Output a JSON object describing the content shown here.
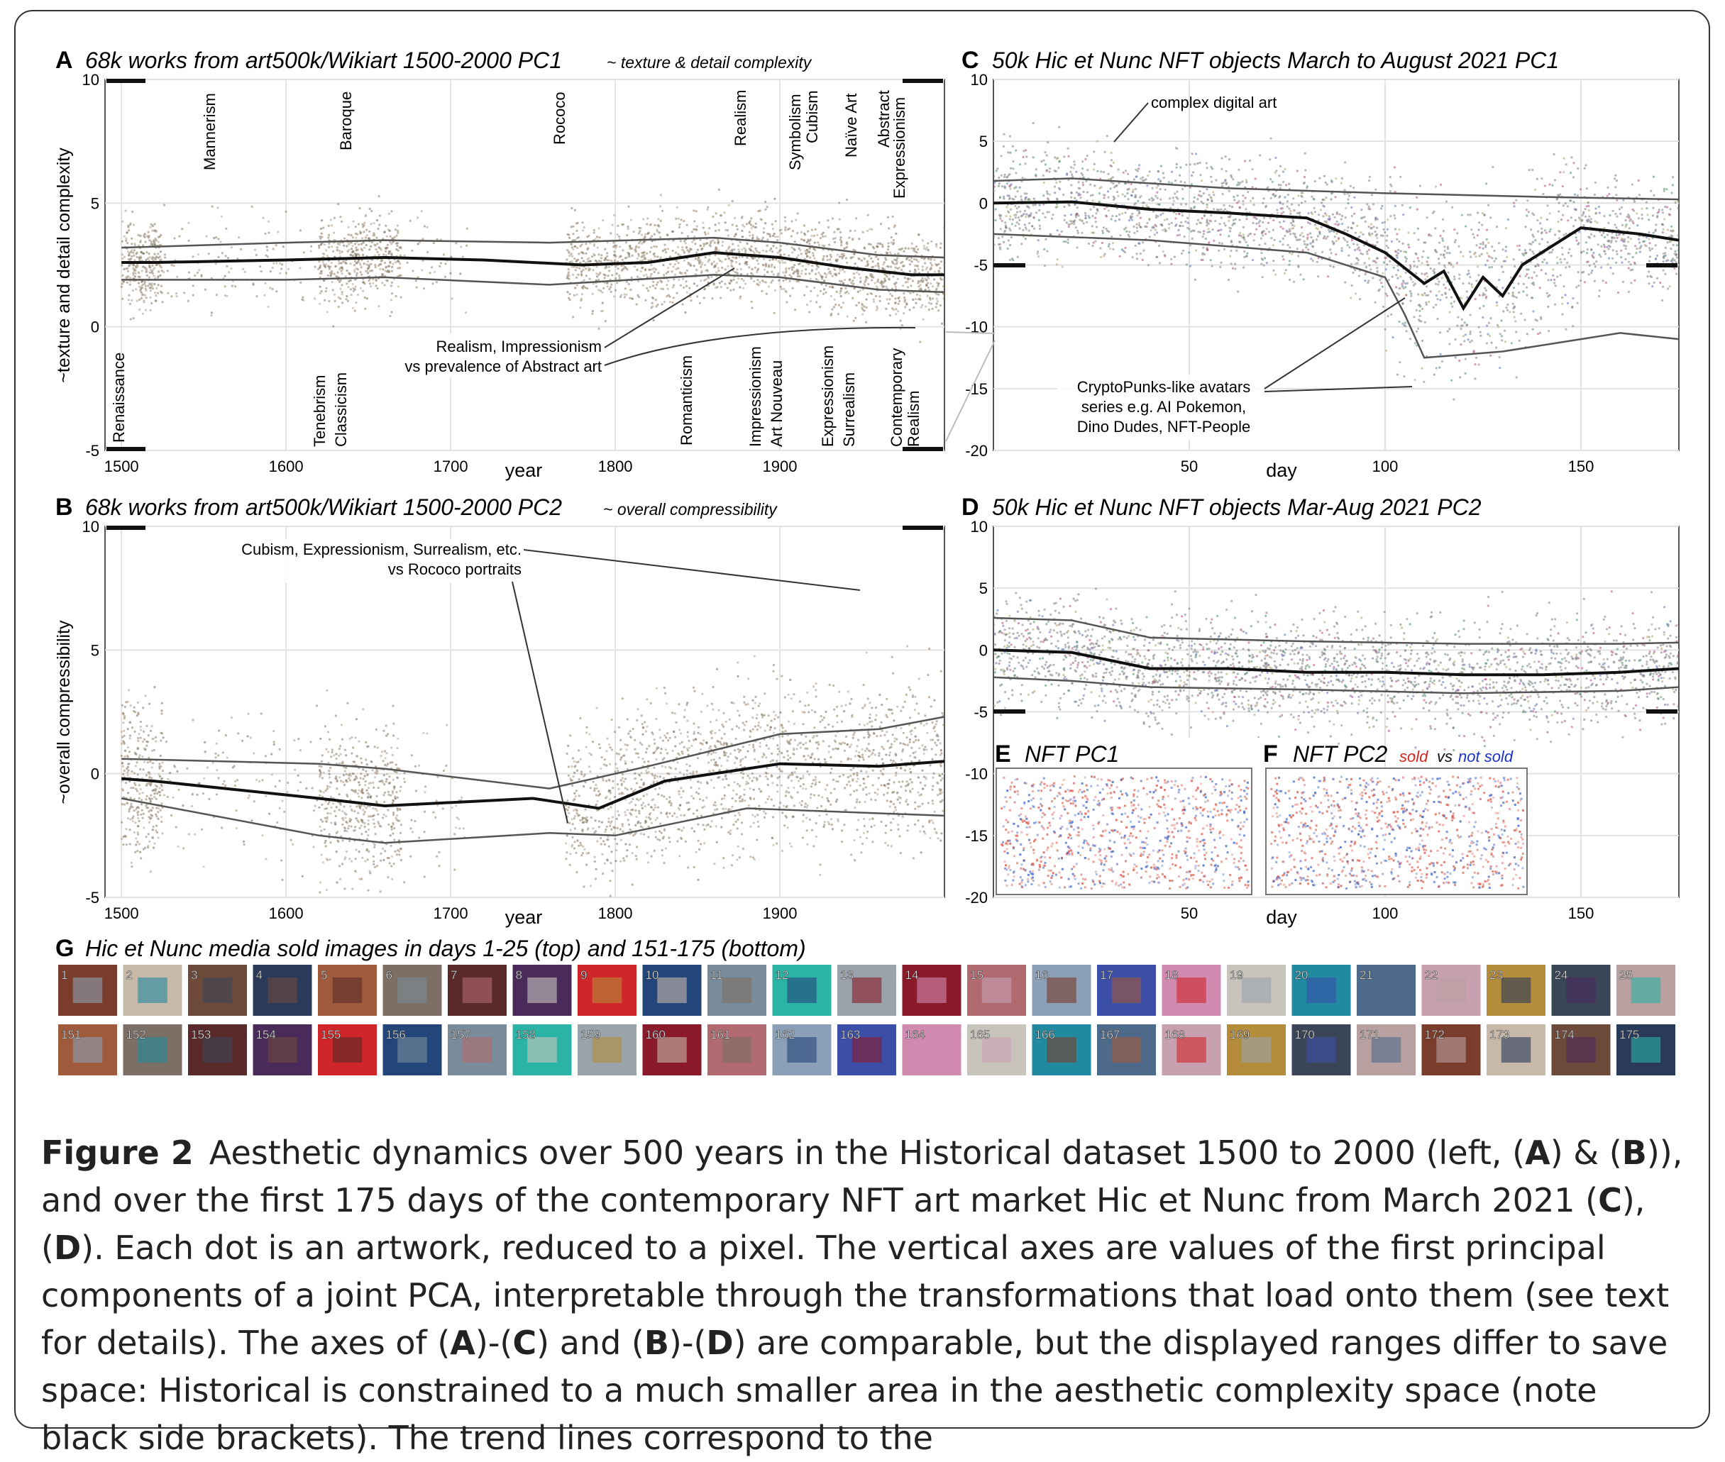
{
  "figure": {
    "panels": {
      "A": {
        "letter": "A",
        "title": "68k works from art500k/Wikiart 1500-2000 PC1",
        "subtitle": "~ texture & detail complexity",
        "ylabel": "~texture and detail complexity",
        "xlabel": "year"
      },
      "B": {
        "letter": "B",
        "title": "68k works from art500k/Wikiart 1500-2000 PC2",
        "subtitle": "~ overall compressibility",
        "ylabel": "~overall compressibility",
        "xlabel": "year"
      },
      "C": {
        "letter": "C",
        "title": "50k Hic et Nunc NFT objects March to August 2021 PC1",
        "xlabel": "day"
      },
      "D": {
        "letter": "D",
        "title": "50k Hic et Nunc NFT objects Mar-Aug 2021 PC2",
        "xlabel": "day"
      },
      "E": {
        "letter": "E",
        "title": "NFT PC1"
      },
      "F": {
        "letter": "F",
        "title": "NFT PC2",
        "sold": "sold",
        "vs": "vs",
        "not_sold": "not sold"
      },
      "G": {
        "letter": "G",
        "title": "Hic et Nunc media sold images in days 1-25 (top) and 151-175 (bottom)",
        "top_labels": [
          "1",
          "2",
          "3",
          "4",
          "5",
          "6",
          "7",
          "8",
          "9",
          "10",
          "11",
          "12",
          "13",
          "14",
          "15",
          "16",
          "17",
          "18",
          "19",
          "20",
          "21",
          "22",
          "23",
          "24",
          "25"
        ],
        "bottom_labels": [
          "151",
          "152",
          "153",
          "154",
          "155",
          "156",
          "157",
          "158",
          "159",
          "160",
          "161",
          "162",
          "163",
          "164",
          "165",
          "166",
          "167",
          "168",
          "169",
          "170",
          "171",
          "172",
          "173",
          "174",
          "175"
        ]
      }
    },
    "annotations": {
      "A_styles_top": [
        "Mannerism",
        "Baroque",
        "Rococo",
        "Realism",
        "Symbolism",
        "Cubism",
        "Naïve Art",
        "Abstract",
        "Expressionism"
      ],
      "A_styles_bottom": [
        "Renaissance",
        "Tenebrism",
        "Classicism",
        "Romanticism",
        "Impressionism",
        "Art Nouveau",
        "Expressionism",
        "Surrealism",
        "Contemporary",
        "Realism"
      ],
      "A_note_1": "Realism, Impressionism",
      "A_note_2": "vs prevalence of Abstract art",
      "B_note_1": "Cubism, Expressionism, Surrealism, etc.",
      "B_note_2": "vs Rococo portraits",
      "C_note_top": "complex digital art",
      "C_note_1": "CryptoPunks-like avatars",
      "C_note_2": "series e.g. AI Pokemon,",
      "C_note_3": "Dino Dudes, NFT-People"
    },
    "caption": {
      "label": "Figure 2",
      "p1": "Aesthetic dynamics over 500 years in the Historical dataset 1500 to 2000 (left, (",
      "A": "A",
      "amp": ") & (",
      "B": "B",
      "p2": ")), and over the first 175 days of the contemporary NFT art market Hic et Nunc from March 2021 (",
      "C": "C",
      "sep": "), (",
      "D": "D",
      "p3": "). Each dot is an artwork, reduced to a pixel. The vertical axes are values of the first principal components of a joint PCA, interpretable through the transformations that load onto them (see text for details). The axes of (",
      "A2": "A",
      "dash": ")-(",
      "C2": "C",
      "and": ") and (",
      "B2": "B",
      "dash2": ")-(",
      "D2": "D",
      "p4": ") are comparable, but the displayed ranges differ to save space: Historical is constrained to a much smaller area in the aesthetic complexity space (note black side brackets). The trend lines correspond to the"
    }
  },
  "chart_data": [
    {
      "type": "scatter",
      "panel": "A",
      "x_ticks": [
        1500,
        1600,
        1700,
        1800,
        1900
      ],
      "y_ticks": [
        -5,
        0,
        5,
        10
      ],
      "xlim": [
        1490,
        2000
      ],
      "ylim": [
        -5,
        10
      ],
      "trend_median": [
        [
          1500,
          2.6
        ],
        [
          1520,
          2.6
        ],
        [
          1600,
          2.7
        ],
        [
          1660,
          2.8
        ],
        [
          1720,
          2.7
        ],
        [
          1780,
          2.5
        ],
        [
          1820,
          2.6
        ],
        [
          1860,
          3.0
        ],
        [
          1900,
          2.8
        ],
        [
          1940,
          2.4
        ],
        [
          1980,
          2.1
        ],
        [
          2000,
          2.1
        ]
      ],
      "trend_upper": [
        [
          1500,
          3.2
        ],
        [
          1600,
          3.4
        ],
        [
          1660,
          3.5
        ],
        [
          1760,
          3.4
        ],
        [
          1860,
          3.6
        ],
        [
          1900,
          3.4
        ],
        [
          1960,
          2.9
        ],
        [
          2000,
          2.8
        ]
      ],
      "trend_lower": [
        [
          1500,
          1.9
        ],
        [
          1600,
          1.9
        ],
        [
          1660,
          2.0
        ],
        [
          1760,
          1.7
        ],
        [
          1860,
          2.1
        ],
        [
          1900,
          2.0
        ],
        [
          1960,
          1.5
        ],
        [
          2000,
          1.4
        ]
      ]
    },
    {
      "type": "scatter",
      "panel": "B",
      "x_ticks": [
        1500,
        1600,
        1700,
        1800,
        1900
      ],
      "y_ticks": [
        -5,
        0,
        5,
        10
      ],
      "xlim": [
        1490,
        2000
      ],
      "ylim": [
        -5,
        10
      ],
      "trend_median": [
        [
          1500,
          -0.2
        ],
        [
          1520,
          -0.3
        ],
        [
          1620,
          -1.0
        ],
        [
          1660,
          -1.3
        ],
        [
          1750,
          -1.0
        ],
        [
          1790,
          -1.4
        ],
        [
          1830,
          -0.3
        ],
        [
          1900,
          0.4
        ],
        [
          1960,
          0.3
        ],
        [
          2000,
          0.5
        ]
      ],
      "trend_upper": [
        [
          1500,
          0.6
        ],
        [
          1620,
          0.4
        ],
        [
          1660,
          0.2
        ],
        [
          1760,
          -0.6
        ],
        [
          1820,
          0.3
        ],
        [
          1900,
          1.6
        ],
        [
          1960,
          1.8
        ],
        [
          2000,
          2.3
        ]
      ],
      "trend_lower": [
        [
          1500,
          -1.0
        ],
        [
          1620,
          -2.5
        ],
        [
          1660,
          -2.8
        ],
        [
          1760,
          -2.4
        ],
        [
          1800,
          -2.5
        ],
        [
          1880,
          -1.4
        ],
        [
          1960,
          -1.6
        ],
        [
          2000,
          -1.7
        ]
      ]
    },
    {
      "type": "scatter",
      "panel": "C",
      "x_ticks": [
        50,
        100,
        150
      ],
      "y_ticks": [
        -20,
        -15,
        -10,
        -5,
        0,
        5,
        10
      ],
      "xlim": [
        0,
        175
      ],
      "ylim": [
        -20,
        10
      ],
      "trend_median": [
        [
          0,
          0.0
        ],
        [
          20,
          0.1
        ],
        [
          40,
          -0.5
        ],
        [
          60,
          -0.8
        ],
        [
          80,
          -1.2
        ],
        [
          90,
          -2.5
        ],
        [
          100,
          -4.0
        ],
        [
          110,
          -6.5
        ],
        [
          115,
          -5.5
        ],
        [
          120,
          -8.5
        ],
        [
          125,
          -6.0
        ],
        [
          130,
          -7.5
        ],
        [
          135,
          -5.0
        ],
        [
          150,
          -2.0
        ],
        [
          165,
          -2.5
        ],
        [
          175,
          -3.0
        ]
      ],
      "trend_upper": [
        [
          0,
          1.8
        ],
        [
          20,
          2.0
        ],
        [
          60,
          1.2
        ],
        [
          100,
          0.8
        ],
        [
          140,
          0.5
        ],
        [
          175,
          0.3
        ]
      ],
      "trend_lower": [
        [
          0,
          -2.5
        ],
        [
          40,
          -3.0
        ],
        [
          80,
          -4.0
        ],
        [
          100,
          -6.0
        ],
        [
          105,
          -9.0
        ],
        [
          110,
          -12.5
        ],
        [
          130,
          -12.0
        ],
        [
          160,
          -10.5
        ],
        [
          175,
          -11.0
        ]
      ]
    },
    {
      "type": "scatter",
      "panel": "D",
      "x_ticks": [
        50,
        100,
        150
      ],
      "y_ticks": [
        -20,
        -15,
        -10,
        -5,
        0,
        5,
        10
      ],
      "xlim": [
        0,
        175
      ],
      "ylim": [
        -20,
        10
      ],
      "trend_median": [
        [
          0,
          0.0
        ],
        [
          20,
          -0.2
        ],
        [
          40,
          -1.5
        ],
        [
          60,
          -1.5
        ],
        [
          80,
          -1.8
        ],
        [
          100,
          -1.8
        ],
        [
          120,
          -2.0
        ],
        [
          140,
          -2.0
        ],
        [
          160,
          -1.8
        ],
        [
          175,
          -1.5
        ]
      ],
      "trend_upper": [
        [
          0,
          2.6
        ],
        [
          20,
          2.4
        ],
        [
          40,
          1.0
        ],
        [
          80,
          0.7
        ],
        [
          120,
          0.5
        ],
        [
          160,
          0.5
        ],
        [
          175,
          0.6
        ]
      ],
      "trend_lower": [
        [
          0,
          -2.2
        ],
        [
          20,
          -2.5
        ],
        [
          40,
          -3.0
        ],
        [
          80,
          -3.2
        ],
        [
          120,
          -3.5
        ],
        [
          160,
          -3.3
        ],
        [
          175,
          -3.0
        ]
      ]
    }
  ]
}
